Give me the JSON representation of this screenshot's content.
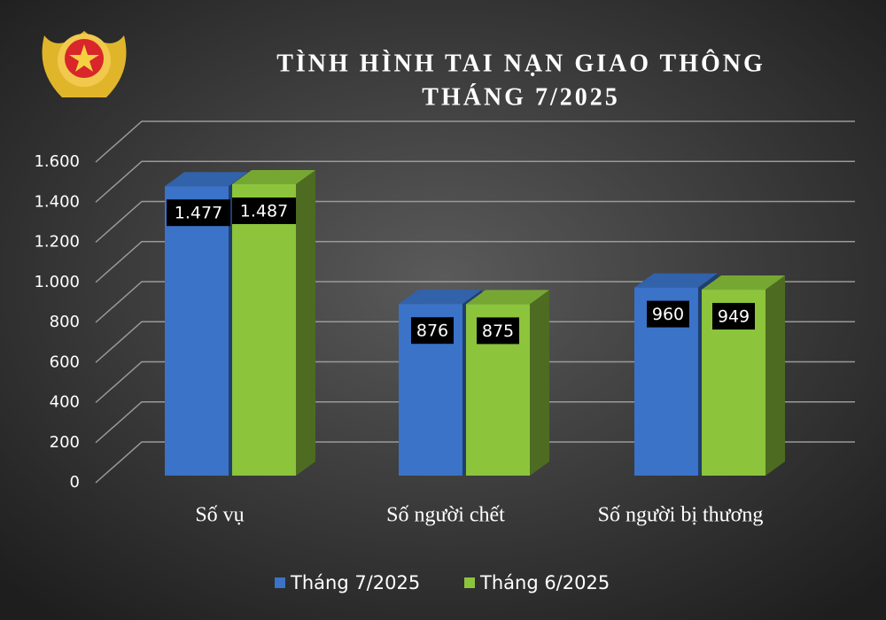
{
  "chart_data": {
    "type": "bar3d",
    "title": "TÌNH HÌNH TAI NẠN GIAO THÔNG",
    "subtitle": "THÁNG 7/2025",
    "categories": [
      "Số vụ",
      "Số người chết",
      "Số người bị thương"
    ],
    "series": [
      {
        "name": "Tháng 7/2025",
        "color": "#3a73c8",
        "values": [
          1477,
          876,
          960
        ],
        "value_labels": [
          "1.477",
          "876",
          "960"
        ]
      },
      {
        "name": "Tháng 6/2025",
        "color": "#8cc43c",
        "values": [
          1487,
          875,
          949
        ],
        "value_labels": [
          "1.487",
          "875",
          "949"
        ]
      }
    ],
    "ylim": [
      0,
      1600
    ],
    "yticks": [
      0,
      200,
      400,
      600,
      800,
      {
        "value": 1000,
        "label": "1.000"
      },
      {
        "value": 1200,
        "label": "1.200"
      },
      {
        "value": 1400,
        "label": "1.400"
      },
      {
        "value": 1600,
        "label": "1.600"
      }
    ],
    "grid": true,
    "legend": "bottom"
  }
}
